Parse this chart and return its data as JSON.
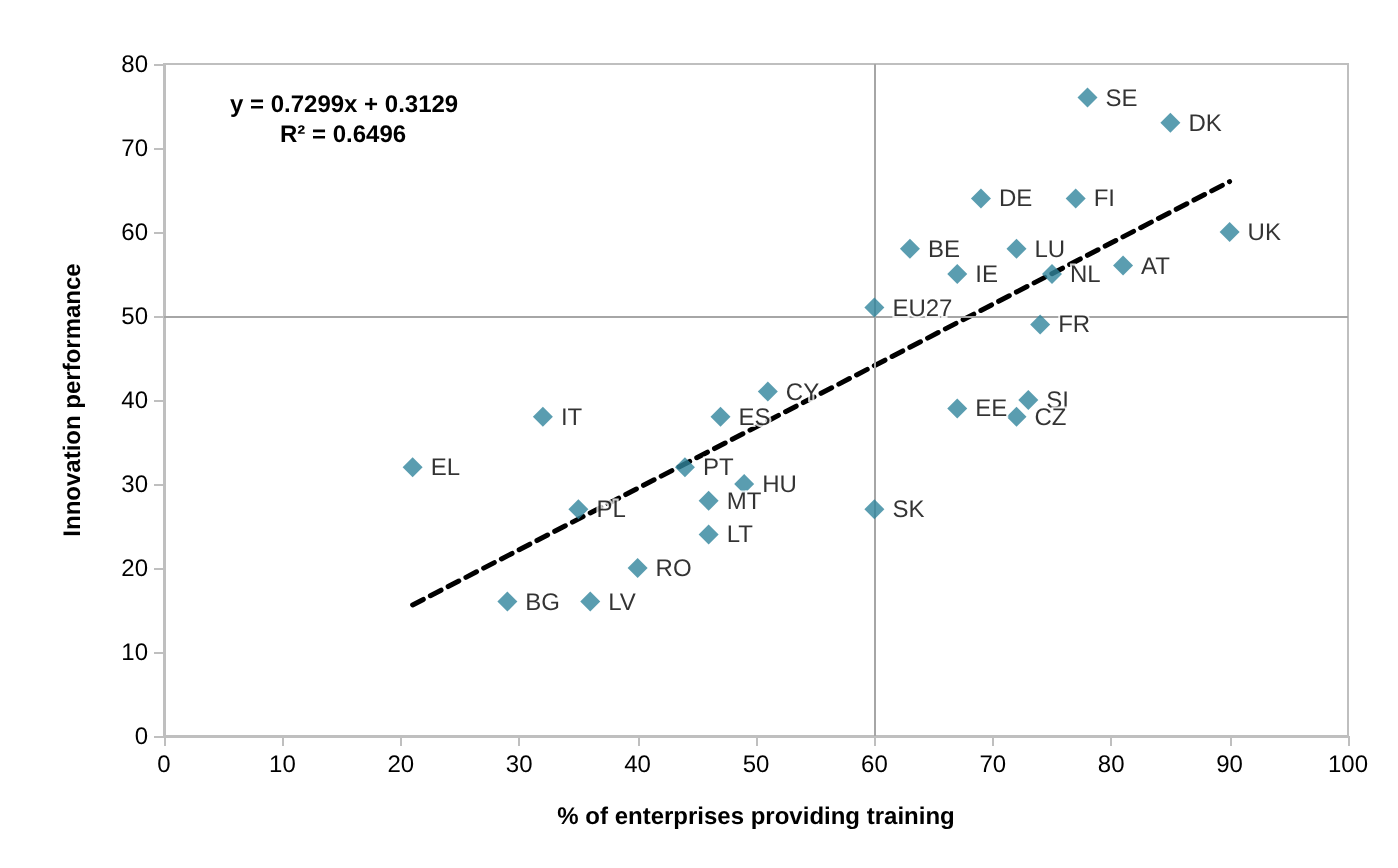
{
  "chart_data": {
    "type": "scatter",
    "xlabel": "% of enterprises providing training",
    "ylabel": "Innovation performance",
    "annotations": [
      "y = 0.7299x + 0.3129",
      "R² = 0.6496"
    ],
    "xlim": [
      0,
      100
    ],
    "xticks": [
      0,
      10,
      20,
      30,
      40,
      50,
      60,
      70,
      80,
      90,
      100
    ],
    "ylim": [
      0,
      80
    ],
    "yticks": [
      0,
      10,
      20,
      30,
      40,
      50,
      60,
      70,
      80
    ],
    "grid": false,
    "marker": "diamond",
    "ref_lines": [
      {
        "axis": "x",
        "value": 60,
        "color": "#a6a6a6"
      },
      {
        "axis": "y",
        "value": 50,
        "color": "#a6a6a6"
      }
    ],
    "series": [
      {
        "color": "#31859c",
        "x": [
          78,
          85,
          69,
          77,
          90,
          63,
          72,
          67,
          75,
          81,
          60,
          74,
          51,
          67,
          73,
          72,
          60,
          32,
          47,
          21,
          44,
          49,
          46,
          35,
          46,
          40,
          29,
          36
        ],
        "values": [
          76,
          73,
          64,
          64,
          60,
          58,
          58,
          55,
          55,
          56,
          51,
          49,
          41,
          39,
          40,
          38,
          27,
          38,
          38,
          32,
          32,
          30,
          28,
          27,
          24,
          20,
          16,
          16
        ],
        "value_labels": [
          "SE",
          "DK",
          "DE",
          "FI",
          "UK",
          "BE",
          "LU",
          "IE",
          "NL",
          "AT",
          "EU27",
          "FR",
          "CY",
          "EE",
          "SI",
          "CZ",
          "SK",
          "IT",
          "ES",
          "EL",
          "PT",
          "HU",
          "MT",
          "PL",
          "LT",
          "RO",
          "BG",
          "LV"
        ]
      },
      {
        "type": "line",
        "color": "#000000",
        "line_style": "dashed",
        "marker": "none",
        "x": [
          21,
          90
        ],
        "values": [
          15.6,
          66.0
        ]
      }
    ]
  }
}
